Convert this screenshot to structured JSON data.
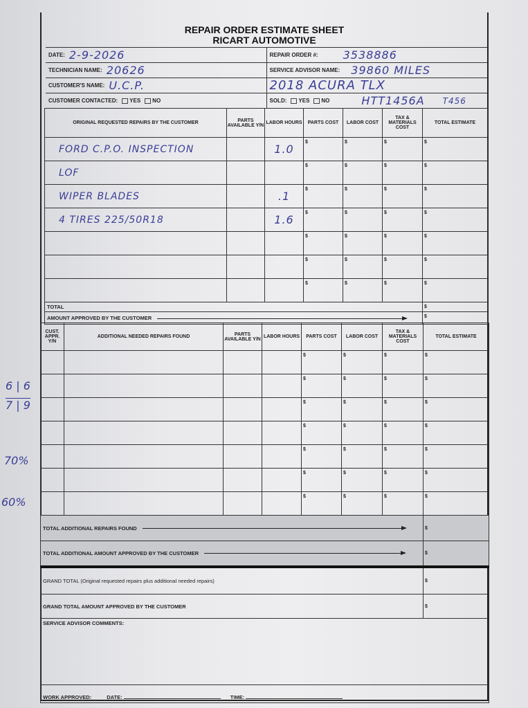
{
  "title": "REPAIR ORDER ESTIMATE SHEET",
  "subtitle": "RICART AUTOMOTIVE",
  "header": {
    "date_label": "DATE:",
    "date": "2-9-2026",
    "repair_order_label": "REPAIR ORDER #:",
    "repair_order": "3538886",
    "technician_label": "TECHNICIAN NAME:",
    "technician": "20626",
    "service_advisor_label": "SERVICE ADVISOR NAME:",
    "mileage": "39860 MILES",
    "customer_label": "CUSTOMER'S NAME:",
    "customer": "U.C.P.",
    "vehicle": "2018 ACURA TLX",
    "contacted_label": "CUSTOMER CONTACTED:",
    "yes": "YES",
    "no": "NO",
    "sold_label": "SOLD:",
    "vin": "HTT1456A",
    "tag": "T456"
  },
  "original": {
    "headers": [
      "ORIGINAL REQUESTED REPAIRS BY THE CUSTOMER",
      "PARTS AVAILABLE Y/N",
      "LABOR HOURS",
      "PARTS COST",
      "LABOR COST",
      "TAX & MATERIALS COST",
      "TOTAL ESTIMATE"
    ],
    "rows": [
      {
        "desc": "FORD C.P.O. INSPECTION",
        "hours": "1.0"
      },
      {
        "desc": "LOF",
        "hours": ""
      },
      {
        "desc": "WIPER BLADES",
        "hours": ".1"
      },
      {
        "desc": "4 TIRES 225/50R18",
        "hours": "1.6"
      },
      {
        "desc": "",
        "hours": ""
      },
      {
        "desc": "",
        "hours": ""
      },
      {
        "desc": "",
        "hours": ""
      }
    ],
    "currency": "$",
    "total_label": "TOTAL",
    "approved_label": "AMOUNT APPROVED BY THE CUSTOMER"
  },
  "additional": {
    "headers": [
      "CUST. APPR. Y/N",
      "ADDITIONAL NEEDED REPAIRS FOUND",
      "PARTS AVAILABLE Y/N",
      "LABOR HOURS",
      "PARTS COST",
      "LABOR COST",
      "TAX & MATERIALS COST",
      "TOTAL ESTIMATE"
    ],
    "total_found_label": "TOTAL ADDITIONAL REPAIRS FOUND",
    "total_approved_label": "TOTAL ADDITIONAL AMOUNT APPROVED BY THE CUSTOMER"
  },
  "grand_total_label": "GRAND TOTAL (Original requested repairs plus additional needed repairs)",
  "grand_approved_label": "GRAND TOTAL AMOUNT APPROVED BY THE CUSTOMER",
  "comments_label": "SERVICE ADVISOR COMMENTS:",
  "work_approved_label": "WORK APPROVED:",
  "date_label": "DATE:",
  "time_label": "TIME:",
  "margin_notes": {
    "tally_top": "6 | 6",
    "tally_bottom": "7 | 9",
    "pct1": "70%",
    "pct2": "60%"
  }
}
